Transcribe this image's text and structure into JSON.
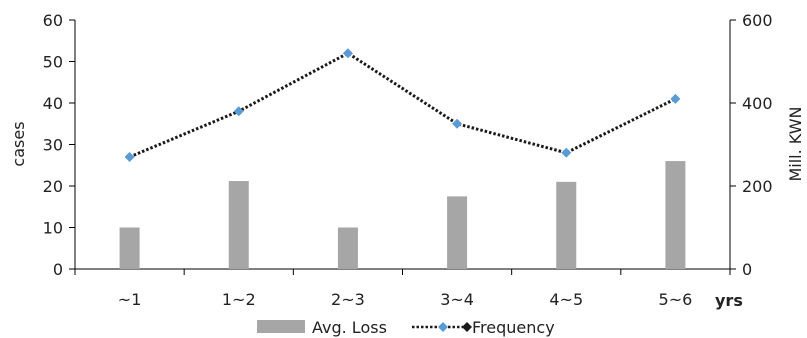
{
  "chart_data": {
    "type": "bar",
    "categories": [
      "~1",
      "1~2",
      "2~3",
      "3~4",
      "4~5",
      "5~6"
    ],
    "x_unit": "yrs",
    "y_left": {
      "label": "cases",
      "range": [
        0,
        60
      ],
      "ticks": [
        "0",
        "10",
        "20",
        "30",
        "40",
        "50",
        "60"
      ]
    },
    "y_right": {
      "label": "Mill. KWN",
      "range": [
        0,
        600
      ],
      "ticks": [
        "0",
        "200",
        "400",
        "600"
      ]
    },
    "series": [
      {
        "name": "Avg. Loss",
        "type": "bar",
        "axis": "right",
        "color": "#a6a6a6",
        "values": [
          100,
          212,
          100,
          175,
          210,
          260
        ]
      },
      {
        "name": "Frequency",
        "type": "line",
        "axis": "left",
        "line_color": "#1a1a1a",
        "line_style": "dotted",
        "marker": "diamond",
        "marker_color": "#5b9bd5",
        "values": [
          27,
          38,
          52,
          35,
          28,
          41
        ]
      }
    ],
    "legend": "bottom",
    "grid": false
  }
}
